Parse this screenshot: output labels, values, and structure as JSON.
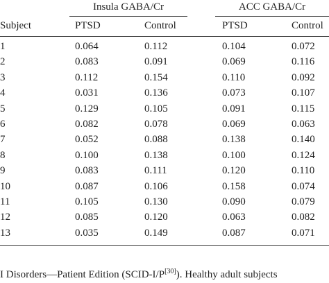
{
  "table": {
    "group_headers": [
      "Insula GABA/Cr",
      "ACC GABA/Cr"
    ],
    "columns": [
      "Subject",
      "PTSD",
      "Control",
      "PTSD",
      "Control"
    ],
    "rows": [
      [
        "1",
        "0.064",
        "0.112",
        "0.104",
        "0.072"
      ],
      [
        "2",
        "0.083",
        "0.091",
        "0.069",
        "0.116"
      ],
      [
        "3",
        "0.112",
        "0.154",
        "0.110",
        "0.092"
      ],
      [
        "4",
        "0.031",
        "0.136",
        "0.073",
        "0.107"
      ],
      [
        "5",
        "0.129",
        "0.105",
        "0.091",
        "0.115"
      ],
      [
        "6",
        "0.082",
        "0.078",
        "0.069",
        "0.063"
      ],
      [
        "7",
        "0.052",
        "0.088",
        "0.138",
        "0.140"
      ],
      [
        "8",
        "0.100",
        "0.138",
        "0.100",
        "0.124"
      ],
      [
        "9",
        "0.083",
        "0.111",
        "0.120",
        "0.110"
      ],
      [
        "10",
        "0.087",
        "0.106",
        "0.158",
        "0.074"
      ],
      [
        "11",
        "0.105",
        "0.130",
        "0.090",
        "0.079"
      ],
      [
        "12",
        "0.085",
        "0.120",
        "0.063",
        "0.082"
      ],
      [
        "13",
        "0.035",
        "0.149",
        "0.087",
        "0.071"
      ]
    ]
  },
  "footer": {
    "text_before": "I Disorders—Patient Edition (SCID-I/P",
    "superscript": "[30]",
    "text_after": "). Healthy adult subjects"
  }
}
